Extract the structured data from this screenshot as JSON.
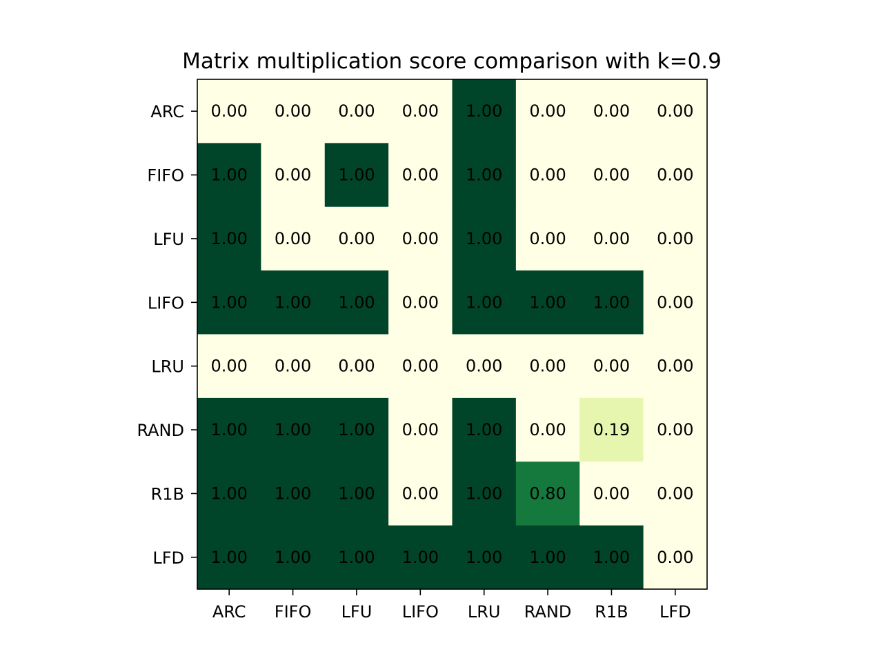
{
  "chart_data": {
    "type": "heatmap",
    "title": "Matrix multiplication score comparison with k=0.9",
    "xlabel": "",
    "ylabel": "",
    "x_categories": [
      "ARC",
      "FIFO",
      "LFU",
      "LIFO",
      "LRU",
      "RAND",
      "R1B",
      "LFD"
    ],
    "y_categories": [
      "ARC",
      "FIFO",
      "LFU",
      "LIFO",
      "LRU",
      "RAND",
      "R1B",
      "LFD"
    ],
    "values": [
      [
        0.0,
        0.0,
        0.0,
        0.0,
        1.0,
        0.0,
        0.0,
        0.0
      ],
      [
        1.0,
        0.0,
        1.0,
        0.0,
        1.0,
        0.0,
        0.0,
        0.0
      ],
      [
        1.0,
        0.0,
        0.0,
        0.0,
        1.0,
        0.0,
        0.0,
        0.0
      ],
      [
        1.0,
        1.0,
        1.0,
        0.0,
        1.0,
        1.0,
        1.0,
        0.0
      ],
      [
        0.0,
        0.0,
        0.0,
        0.0,
        0.0,
        0.0,
        0.0,
        0.0
      ],
      [
        1.0,
        1.0,
        1.0,
        0.0,
        1.0,
        0.0,
        0.19,
        0.0
      ],
      [
        1.0,
        1.0,
        1.0,
        0.0,
        1.0,
        0.8,
        0.0,
        0.0
      ],
      [
        1.0,
        1.0,
        1.0,
        1.0,
        1.0,
        1.0,
        1.0,
        0.0
      ]
    ],
    "value_format": "0.00",
    "vmin": 0.0,
    "vmax": 1.0,
    "colormap": "YlGn",
    "colorscale_stops": [
      "#ffffe5",
      "#f7fcb9",
      "#d9f0a3",
      "#addd8e",
      "#78c679",
      "#41ab5d",
      "#238443",
      "#006837",
      "#004529"
    ],
    "grid": false,
    "legend": "none"
  }
}
